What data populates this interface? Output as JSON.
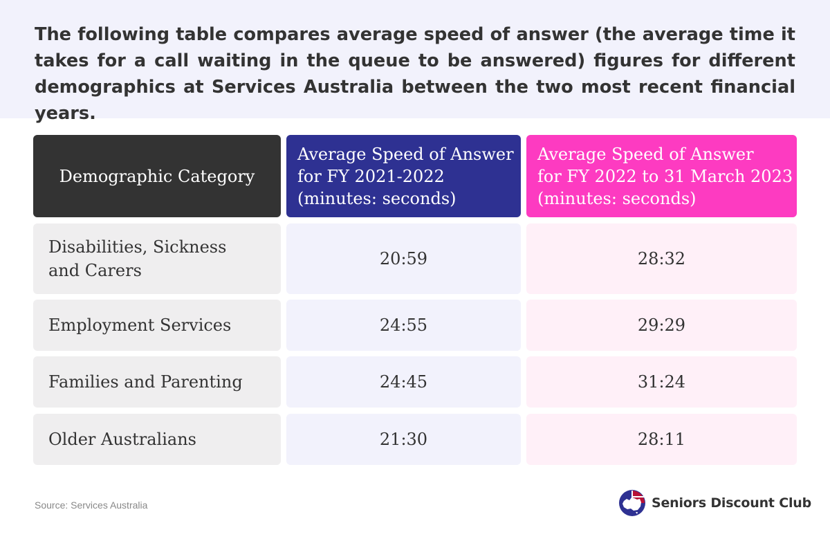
{
  "intro": {
    "text": "The following table compares average speed of answer (the average time it takes for a call waiting in the queue to be answered) figures for different demographics at Services Australia between the two most recent financial years."
  },
  "chart_data": {
    "type": "table",
    "columns": [
      "Demographic Category",
      "Average Speed of Answer\nfor FY 2021-2022\n(minutes: seconds)",
      "Average Speed of Answer\nfor FY 2022 to 31 March 2023\n(minutes: seconds)"
    ],
    "rows": [
      {
        "category": "Disabilities, Sickness\nand Carers",
        "fy2021_2022": "20:59",
        "fy2022_mar2023": "28:32"
      },
      {
        "category": "Employment Services",
        "fy2021_2022": "24:55",
        "fy2022_mar2023": "29:29"
      },
      {
        "category": "Families and Parenting",
        "fy2021_2022": "24:45",
        "fy2022_mar2023": "31:24"
      },
      {
        "category": "Older Australians",
        "fy2021_2022": "21:30",
        "fy2022_mar2023": "28:11"
      }
    ],
    "colors": {
      "header_category": "#333333",
      "header_fy1": "#2e3192",
      "header_fy2": "#fd3bc1",
      "cell_category": "#efeeef",
      "cell_fy1": "#f2f2fc",
      "cell_fy2": "#fff0f8"
    }
  },
  "footer": {
    "source": "Source: Services Australia",
    "brand_name": "Seniors Discount Club",
    "brand_icon": "australia-map-logo-icon"
  }
}
